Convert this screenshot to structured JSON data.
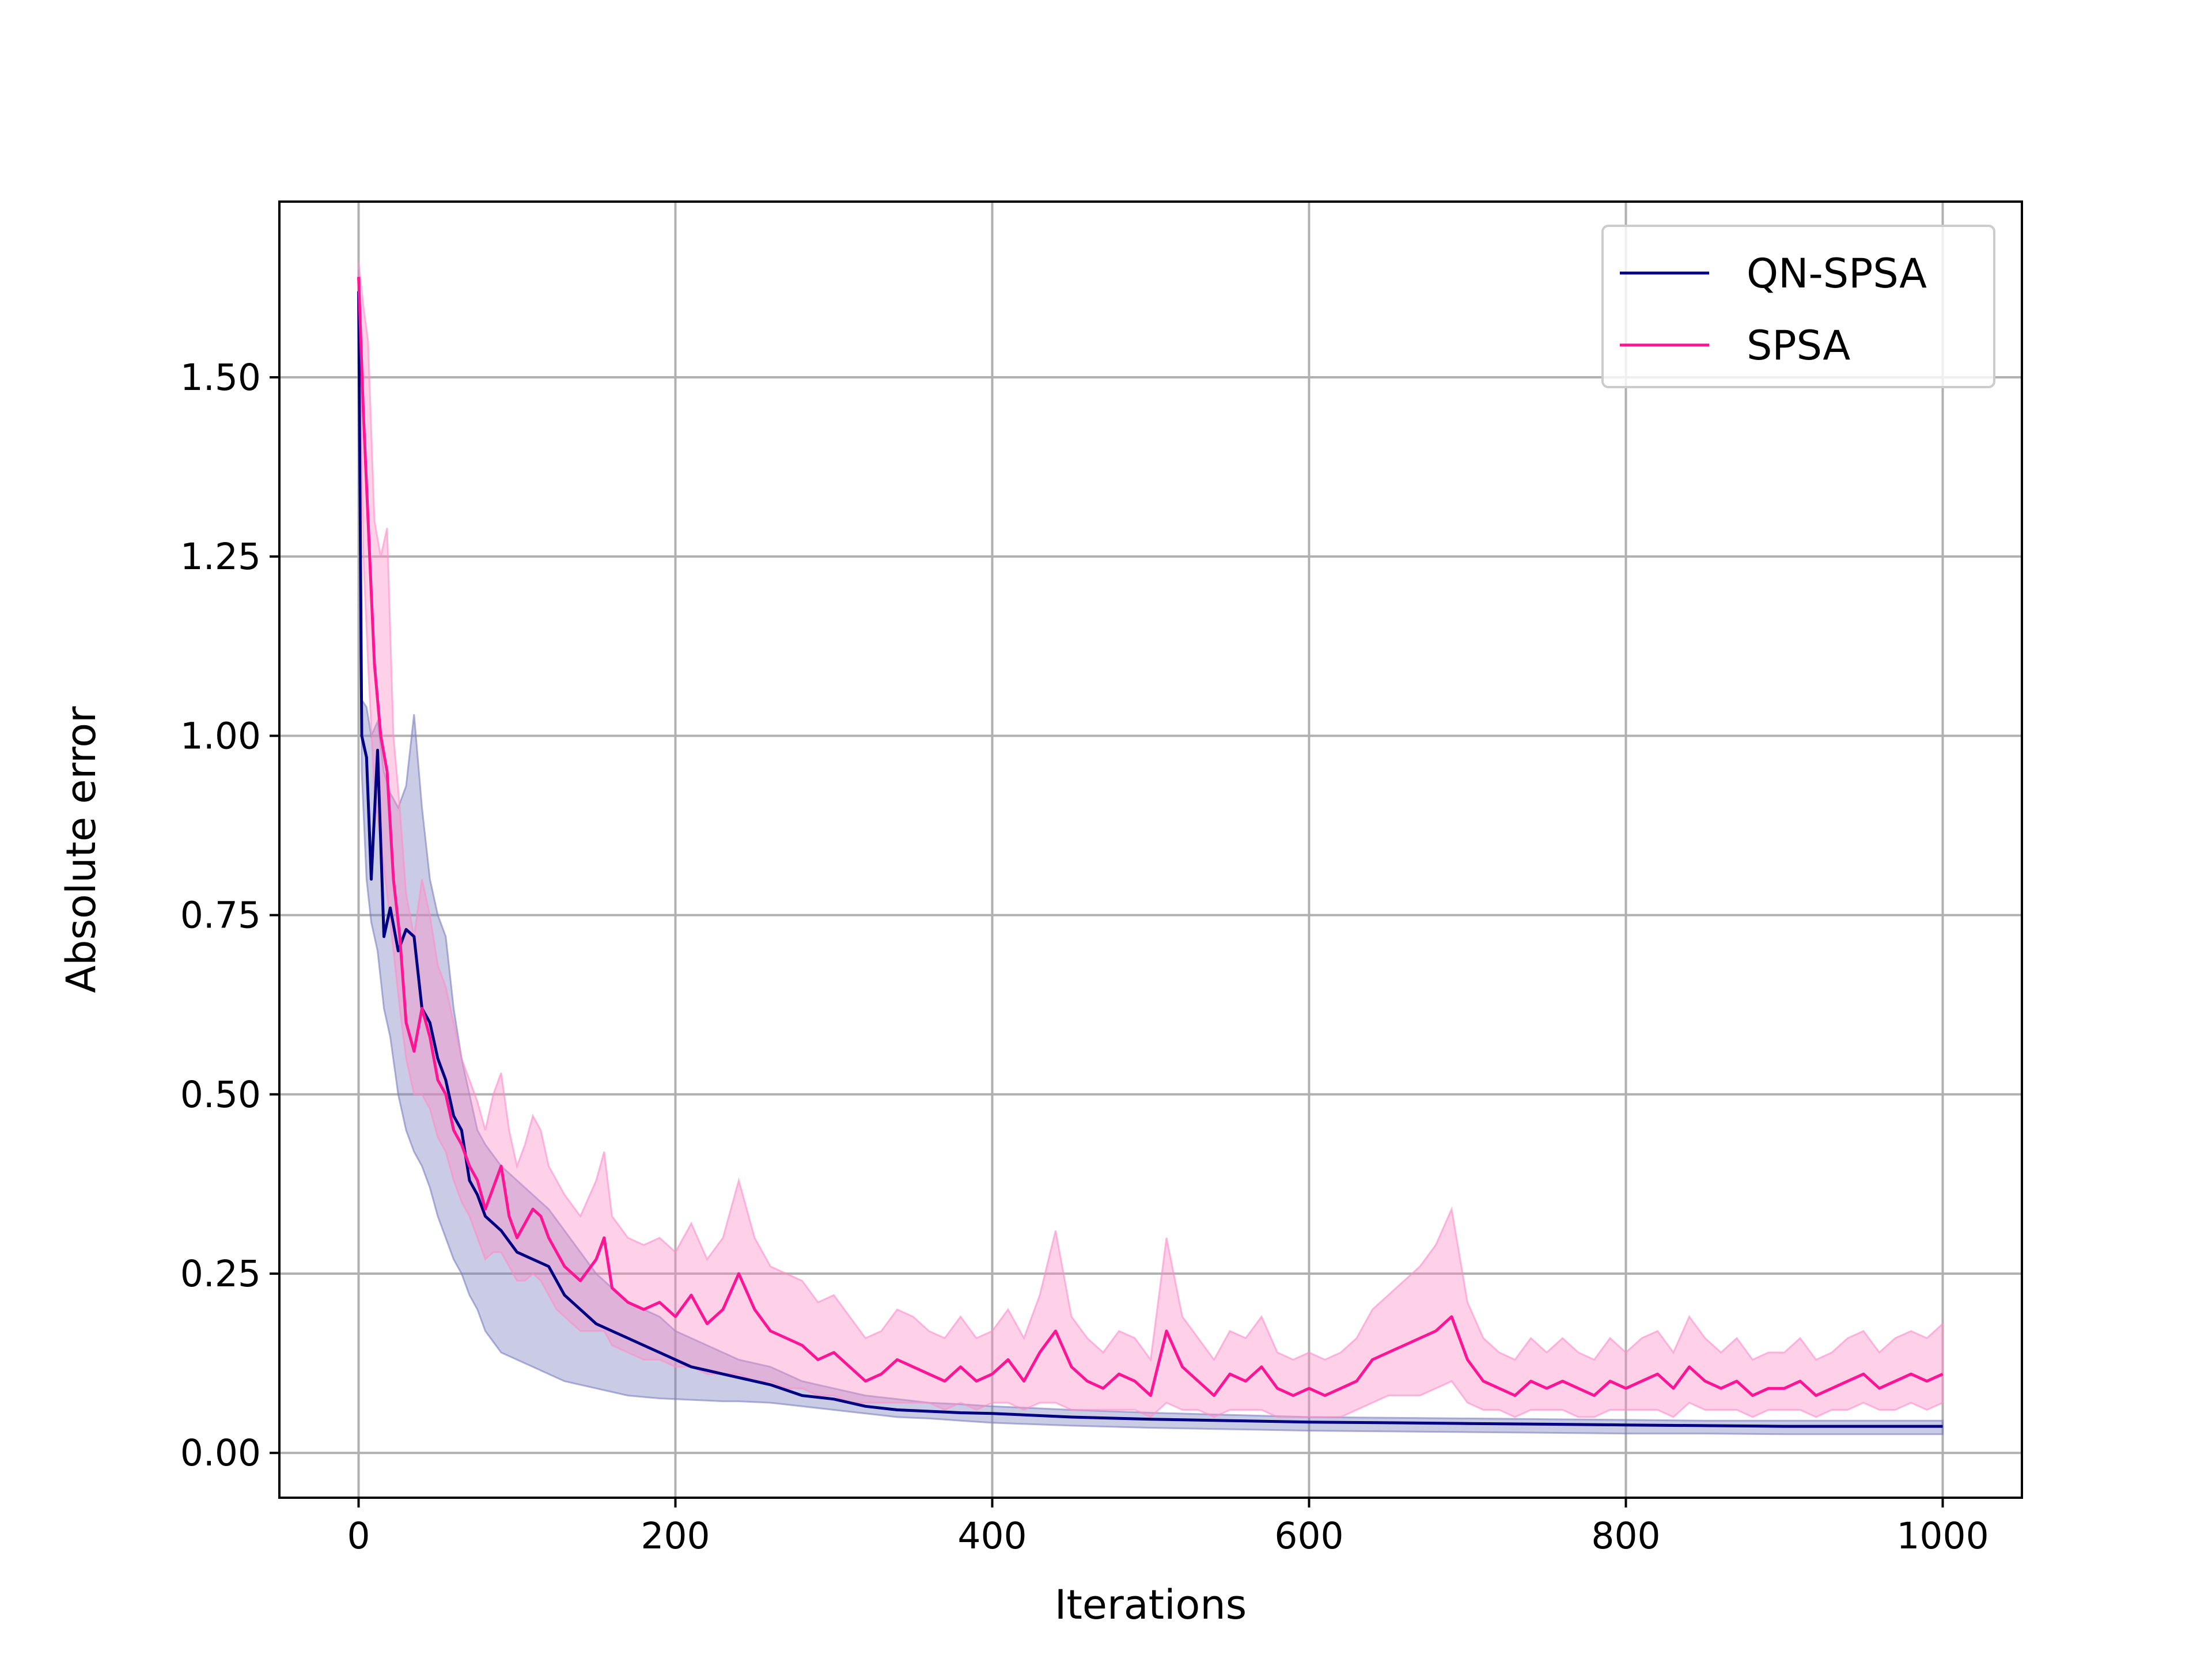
{
  "chart_data": {
    "type": "line",
    "title": "",
    "xlabel": "Iterations",
    "ylabel": "Absolute error",
    "xlim": [
      -50,
      1050
    ],
    "ylim": [
      -0.0625,
      1.745
    ],
    "xticks": [
      0,
      200,
      400,
      600,
      800,
      1000
    ],
    "xtick_labels": [
      "0",
      "200",
      "400",
      "600",
      "800",
      "1000"
    ],
    "yticks": [
      0.0,
      0.25,
      0.5,
      0.75,
      1.0,
      1.25,
      1.5
    ],
    "ytick_labels": [
      "0.00",
      "0.25",
      "0.50",
      "0.75",
      "1.00",
      "1.25",
      "1.50"
    ],
    "grid": true,
    "legend_position": "top-right",
    "series": [
      {
        "name": "QN-SPSA",
        "color": "#000080",
        "band_color": "#7b7fbf",
        "x": [
          0,
          2,
          5,
          8,
          12,
          16,
          20,
          25,
          30,
          35,
          40,
          45,
          50,
          55,
          60,
          65,
          70,
          75,
          80,
          90,
          100,
          110,
          120,
          130,
          140,
          150,
          160,
          170,
          180,
          190,
          200,
          210,
          220,
          230,
          240,
          260,
          280,
          300,
          320,
          340,
          360,
          380,
          400,
          450,
          500,
          550,
          600,
          650,
          700,
          750,
          800,
          850,
          900,
          950,
          1000
        ],
        "y": [
          1.62,
          1.0,
          0.97,
          0.8,
          0.98,
          0.72,
          0.76,
          0.7,
          0.73,
          0.72,
          0.62,
          0.6,
          0.55,
          0.52,
          0.47,
          0.45,
          0.38,
          0.36,
          0.33,
          0.31,
          0.28,
          0.27,
          0.26,
          0.22,
          0.2,
          0.18,
          0.17,
          0.16,
          0.15,
          0.14,
          0.13,
          0.12,
          0.115,
          0.11,
          0.105,
          0.095,
          0.08,
          0.075,
          0.065,
          0.06,
          0.058,
          0.056,
          0.055,
          0.05,
          0.047,
          0.045,
          0.043,
          0.042,
          0.041,
          0.04,
          0.039,
          0.038,
          0.037,
          0.037,
          0.037
        ],
        "lower": [
          1.6,
          0.95,
          0.8,
          0.74,
          0.7,
          0.62,
          0.58,
          0.5,
          0.45,
          0.42,
          0.4,
          0.37,
          0.33,
          0.3,
          0.27,
          0.25,
          0.22,
          0.2,
          0.17,
          0.14,
          0.13,
          0.12,
          0.11,
          0.1,
          0.095,
          0.09,
          0.085,
          0.08,
          0.078,
          0.076,
          0.075,
          0.074,
          0.073,
          0.072,
          0.072,
          0.07,
          0.065,
          0.06,
          0.055,
          0.05,
          0.048,
          0.045,
          0.042,
          0.038,
          0.035,
          0.033,
          0.031,
          0.03,
          0.029,
          0.028,
          0.027,
          0.027,
          0.026,
          0.026,
          0.026
        ],
        "upper": [
          1.65,
          1.05,
          1.04,
          1.0,
          1.02,
          0.95,
          0.92,
          0.9,
          0.93,
          1.03,
          0.9,
          0.8,
          0.75,
          0.72,
          0.62,
          0.55,
          0.5,
          0.45,
          0.43,
          0.4,
          0.38,
          0.36,
          0.34,
          0.31,
          0.28,
          0.25,
          0.23,
          0.21,
          0.2,
          0.19,
          0.17,
          0.16,
          0.15,
          0.14,
          0.13,
          0.12,
          0.1,
          0.09,
          0.08,
          0.075,
          0.07,
          0.068,
          0.065,
          0.06,
          0.056,
          0.053,
          0.05,
          0.049,
          0.048,
          0.047,
          0.046,
          0.045,
          0.045,
          0.045,
          0.045
        ]
      },
      {
        "name": "SPSA",
        "color": "#ff1493",
        "band_color": "#ff8cc8",
        "x": [
          0,
          3,
          6,
          10,
          14,
          18,
          22,
          26,
          30,
          35,
          40,
          45,
          50,
          55,
          60,
          65,
          70,
          75,
          80,
          85,
          90,
          95,
          100,
          105,
          110,
          115,
          120,
          125,
          130,
          140,
          150,
          155,
          160,
          170,
          180,
          190,
          200,
          210,
          220,
          230,
          240,
          250,
          260,
          270,
          280,
          290,
          300,
          310,
          320,
          330,
          340,
          350,
          360,
          370,
          380,
          390,
          400,
          410,
          420,
          430,
          440,
          450,
          460,
          470,
          480,
          490,
          500,
          510,
          520,
          530,
          540,
          550,
          560,
          570,
          580,
          590,
          600,
          610,
          620,
          630,
          640,
          650,
          660,
          670,
          680,
          690,
          700,
          710,
          720,
          730,
          740,
          750,
          760,
          770,
          780,
          790,
          800,
          810,
          820,
          830,
          840,
          850,
          860,
          870,
          880,
          890,
          900,
          910,
          920,
          930,
          940,
          950,
          960,
          970,
          980,
          990,
          1000
        ],
        "y": [
          1.64,
          1.45,
          1.3,
          1.1,
          1.0,
          0.95,
          0.8,
          0.72,
          0.6,
          0.56,
          0.62,
          0.58,
          0.52,
          0.5,
          0.45,
          0.43,
          0.4,
          0.38,
          0.34,
          0.37,
          0.4,
          0.33,
          0.3,
          0.32,
          0.34,
          0.33,
          0.3,
          0.28,
          0.26,
          0.24,
          0.27,
          0.3,
          0.23,
          0.21,
          0.2,
          0.21,
          0.19,
          0.22,
          0.18,
          0.2,
          0.25,
          0.2,
          0.17,
          0.16,
          0.15,
          0.13,
          0.14,
          0.12,
          0.1,
          0.11,
          0.13,
          0.12,
          0.11,
          0.1,
          0.12,
          0.1,
          0.11,
          0.13,
          0.1,
          0.14,
          0.17,
          0.12,
          0.1,
          0.09,
          0.11,
          0.1,
          0.08,
          0.17,
          0.12,
          0.1,
          0.08,
          0.11,
          0.1,
          0.12,
          0.09,
          0.08,
          0.09,
          0.08,
          0.09,
          0.1,
          0.13,
          0.14,
          0.15,
          0.16,
          0.17,
          0.19,
          0.13,
          0.1,
          0.09,
          0.08,
          0.1,
          0.09,
          0.1,
          0.09,
          0.08,
          0.1,
          0.09,
          0.1,
          0.11,
          0.09,
          0.12,
          0.1,
          0.09,
          0.1,
          0.08,
          0.09,
          0.09,
          0.1,
          0.08,
          0.09,
          0.1,
          0.11,
          0.09,
          0.1,
          0.11,
          0.1,
          0.11
        ],
        "lower": [
          1.62,
          1.25,
          1.1,
          0.92,
          0.85,
          0.78,
          0.7,
          0.62,
          0.55,
          0.5,
          0.5,
          0.48,
          0.44,
          0.42,
          0.38,
          0.35,
          0.33,
          0.3,
          0.27,
          0.28,
          0.28,
          0.26,
          0.24,
          0.24,
          0.25,
          0.24,
          0.22,
          0.2,
          0.19,
          0.17,
          0.17,
          0.17,
          0.15,
          0.14,
          0.13,
          0.13,
          0.12,
          0.12,
          0.11,
          0.11,
          0.11,
          0.1,
          0.1,
          0.09,
          0.09,
          0.08,
          0.08,
          0.07,
          0.07,
          0.07,
          0.07,
          0.07,
          0.07,
          0.06,
          0.07,
          0.06,
          0.07,
          0.07,
          0.06,
          0.07,
          0.07,
          0.06,
          0.06,
          0.06,
          0.06,
          0.06,
          0.05,
          0.07,
          0.06,
          0.06,
          0.05,
          0.06,
          0.06,
          0.06,
          0.05,
          0.05,
          0.05,
          0.05,
          0.05,
          0.06,
          0.07,
          0.08,
          0.08,
          0.08,
          0.09,
          0.1,
          0.07,
          0.06,
          0.06,
          0.05,
          0.06,
          0.06,
          0.06,
          0.05,
          0.05,
          0.06,
          0.06,
          0.06,
          0.06,
          0.05,
          0.07,
          0.06,
          0.06,
          0.06,
          0.05,
          0.06,
          0.06,
          0.06,
          0.05,
          0.06,
          0.06,
          0.07,
          0.06,
          0.06,
          0.07,
          0.06,
          0.07
        ],
        "upper": [
          1.66,
          1.6,
          1.55,
          1.3,
          1.25,
          1.29,
          1.0,
          0.9,
          0.78,
          0.72,
          0.8,
          0.75,
          0.68,
          0.65,
          0.6,
          0.55,
          0.52,
          0.49,
          0.45,
          0.5,
          0.53,
          0.45,
          0.4,
          0.43,
          0.47,
          0.45,
          0.4,
          0.38,
          0.36,
          0.33,
          0.38,
          0.42,
          0.33,
          0.3,
          0.29,
          0.3,
          0.28,
          0.32,
          0.27,
          0.3,
          0.38,
          0.3,
          0.26,
          0.25,
          0.24,
          0.21,
          0.22,
          0.19,
          0.16,
          0.17,
          0.2,
          0.19,
          0.17,
          0.16,
          0.19,
          0.16,
          0.17,
          0.2,
          0.16,
          0.22,
          0.31,
          0.19,
          0.16,
          0.14,
          0.17,
          0.16,
          0.13,
          0.3,
          0.19,
          0.16,
          0.13,
          0.17,
          0.16,
          0.19,
          0.14,
          0.13,
          0.14,
          0.13,
          0.14,
          0.16,
          0.2,
          0.22,
          0.24,
          0.26,
          0.29,
          0.34,
          0.21,
          0.16,
          0.14,
          0.13,
          0.16,
          0.14,
          0.16,
          0.14,
          0.13,
          0.16,
          0.14,
          0.16,
          0.17,
          0.14,
          0.19,
          0.16,
          0.14,
          0.16,
          0.13,
          0.14,
          0.14,
          0.16,
          0.13,
          0.14,
          0.16,
          0.17,
          0.14,
          0.16,
          0.17,
          0.16,
          0.18
        ]
      }
    ]
  }
}
